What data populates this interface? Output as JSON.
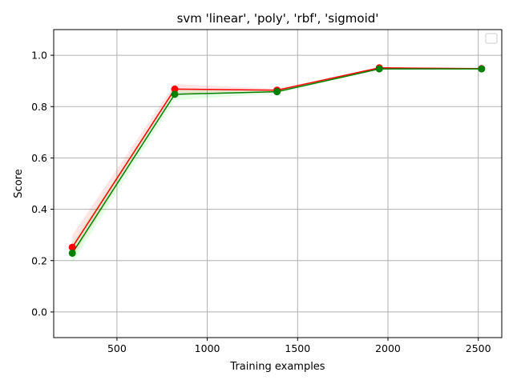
{
  "chart_data": {
    "type": "line",
    "title": "svm 'linear', 'poly', 'rbf', 'sigmoid'",
    "xlabel": "Training examples",
    "ylabel": "Score",
    "xlim": [
      150,
      2630
    ],
    "ylim": [
      -0.1,
      1.1
    ],
    "xticks": [
      500,
      1000,
      1500,
      2000,
      2500
    ],
    "yticks": [
      0.0,
      0.2,
      0.4,
      0.6,
      0.8,
      1.0
    ],
    "xtick_labels": [
      "500",
      "1000",
      "1500",
      "2000",
      "2500"
    ],
    "ytick_labels": [
      "0.0",
      "0.2",
      "0.4",
      "0.6",
      "0.8",
      "1.0"
    ],
    "grid": true,
    "legend": "top-right",
    "x": [
      253,
      820,
      1386,
      1952,
      2518
    ],
    "series": [
      {
        "color": "#ff0000",
        "band_color": "#ff0000",
        "values": [
          0.252,
          0.868,
          0.864,
          0.951,
          0.948
        ],
        "lower": [
          0.21,
          0.85,
          0.858,
          0.948,
          0.946
        ],
        "upper": [
          0.3,
          0.888,
          0.87,
          0.954,
          0.95
        ]
      },
      {
        "color": "#008000",
        "band_color": "#00ff00",
        "values": [
          0.229,
          0.848,
          0.858,
          0.947,
          0.947
        ],
        "lower": [
          0.19,
          0.825,
          0.852,
          0.944,
          0.945
        ],
        "upper": [
          0.27,
          0.87,
          0.865,
          0.95,
          0.949
        ]
      }
    ]
  }
}
